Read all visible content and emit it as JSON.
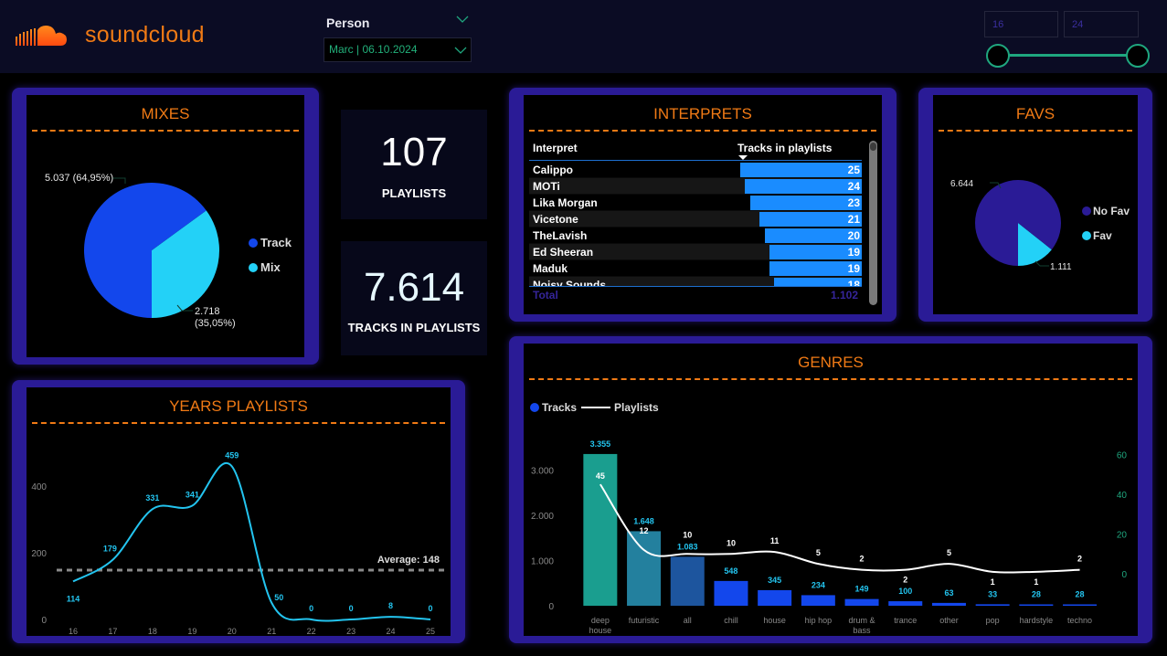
{
  "header": {
    "brand": "soundcloud",
    "brand_color": "#f07a15",
    "person_filter": {
      "label": "Person",
      "value": "Marc | 06.10.2024"
    },
    "year_range": {
      "min": "16",
      "max": "24"
    }
  },
  "kpis": {
    "playlists": {
      "value": "107",
      "label": "PLAYLISTS"
    },
    "tracks": {
      "value": "7.614",
      "label": "TRACKS IN PLAYLISTS"
    }
  },
  "mixes": {
    "title": "MIXES",
    "legend": [
      "Track",
      "Mix"
    ],
    "labels": {
      "track": "5.037 (64,95%)",
      "mix_line1": "2.718",
      "mix_line2": "(35,05%)"
    },
    "colors": {
      "track": "#1347ec",
      "mix": "#23d1f7"
    }
  },
  "favs": {
    "title": "FAVS",
    "legend": [
      "No Fav",
      "Fav"
    ],
    "labels": {
      "no_fav": "6.644",
      "fav": "1.111"
    },
    "colors": {
      "no_fav": "#2a1b96",
      "fav": "#23d1f7"
    }
  },
  "interprets": {
    "title": "INTERPRETS",
    "columns": [
      "Interpret",
      "Tracks in playlists"
    ],
    "rows": [
      {
        "name": "Calippo",
        "value": "25"
      },
      {
        "name": "MOTi",
        "value": "24"
      },
      {
        "name": "Lika Morgan",
        "value": "23"
      },
      {
        "name": "Vicetone",
        "value": "21"
      },
      {
        "name": "TheLavish",
        "value": "20"
      },
      {
        "name": "Ed Sheeran",
        "value": "19"
      },
      {
        "name": "Maduk",
        "value": "19"
      },
      {
        "name": "Noisy Sounds",
        "value": "18"
      }
    ],
    "total_label": "Total",
    "total_value": "1.102"
  },
  "years": {
    "title": "YEARS PLAYLISTS",
    "average_label": "Average: 148"
  },
  "genres": {
    "title": "GENRES",
    "legend": {
      "bars": "Tracks",
      "line": "Playlists"
    }
  },
  "chart_data": [
    {
      "id": "mixes",
      "type": "pie",
      "title": "MIXES",
      "categories": [
        "Track",
        "Mix"
      ],
      "values": [
        5037,
        2718
      ],
      "percent": [
        64.95,
        35.05
      ],
      "legend": "right"
    },
    {
      "id": "favs",
      "type": "pie",
      "title": "FAVS",
      "categories": [
        "No Fav",
        "Fav"
      ],
      "values": [
        6644,
        1111
      ],
      "legend": "right"
    },
    {
      "id": "interprets",
      "type": "table",
      "title": "INTERPRETS",
      "categories": [
        "Calippo",
        "MOTi",
        "Lika Morgan",
        "Vicetone",
        "TheLavish",
        "Ed Sheeran",
        "Maduk",
        "Noisy Sounds"
      ],
      "values": [
        25,
        24,
        23,
        21,
        20,
        19,
        19,
        18
      ],
      "total": 1102
    },
    {
      "id": "years",
      "type": "line",
      "title": "YEARS PLAYLISTS",
      "x": [
        "16",
        "17",
        "18",
        "19",
        "20",
        "21",
        "22",
        "23",
        "24",
        "25"
      ],
      "values": [
        114,
        179,
        331,
        341,
        459,
        50,
        0,
        0,
        8,
        0
      ],
      "yticks": [
        0,
        200,
        400
      ],
      "ylim": [
        0,
        500
      ],
      "average": 148,
      "grid": false
    },
    {
      "id": "genres",
      "type": "bar",
      "title": "GENRES",
      "categories": [
        "deep house",
        "futuristic",
        "all",
        "chill",
        "house",
        "hip hop",
        "drum & bass",
        "trance",
        "other",
        "pop",
        "hardstyle",
        "techno"
      ],
      "series": [
        {
          "name": "Tracks",
          "type": "bar",
          "axis": "left",
          "values": [
            3355,
            1648,
            1083,
            548,
            345,
            234,
            149,
            100,
            63,
            33,
            28,
            28
          ],
          "labels": [
            "3.355",
            "1.648",
            "1.083",
            "548",
            "345",
            "234",
            "149",
            "100",
            "63",
            "33",
            "28",
            "28"
          ]
        },
        {
          "name": "Playlists",
          "type": "line",
          "axis": "right",
          "values": [
            45,
            12,
            10,
            10,
            11,
            5,
            2,
            2,
            5,
            1,
            1,
            2
          ]
        }
      ],
      "yticks_left": [
        "0",
        "1.000",
        "2.000",
        "3.000"
      ],
      "ylim_left": [
        0,
        3500
      ],
      "yticks_right": [
        "0",
        "20",
        "40",
        "60"
      ],
      "ylim_right": [
        0,
        70
      ],
      "bar_colors": [
        "#1a9e8f",
        "#23809e",
        "#1d559e",
        "#1347ec",
        "#1347ec",
        "#1347ec",
        "#1347ec",
        "#1347ec",
        "#1347ec",
        "#1347ec",
        "#1347ec",
        "#1347ec"
      ],
      "legend": "top-left"
    }
  ]
}
